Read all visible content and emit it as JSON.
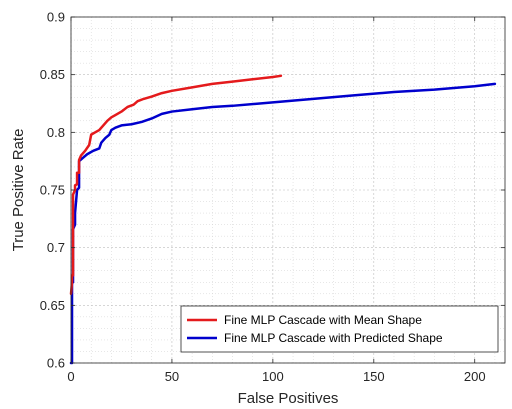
{
  "chart_data": {
    "type": "line",
    "title": "",
    "xlabel": "False Positives",
    "ylabel": "True Positive Rate",
    "xlim": [
      0,
      215
    ],
    "ylim": [
      0.6,
      0.9
    ],
    "xticks": [
      0,
      50,
      100,
      150,
      200
    ],
    "yticks": [
      0.6,
      0.65,
      0.7,
      0.75,
      0.8,
      0.85,
      0.9
    ],
    "xtick_labels": [
      "0",
      "50",
      "100",
      "150",
      "200"
    ],
    "ytick_labels": [
      "0.6",
      "0.65",
      "0.7",
      "0.75",
      "0.8",
      "0.85",
      "0.9"
    ],
    "grid": true,
    "minor_grid": true,
    "legend_position": "bottom-right",
    "series": [
      {
        "name": "Fine MLP Cascade with Mean Shape",
        "color": "#e41a1c",
        "x": [
          0,
          0.5,
          0.5,
          1,
          1,
          2,
          2,
          3,
          3,
          4,
          4,
          5,
          7,
          9,
          10,
          12,
          14,
          16,
          18,
          20,
          22,
          25,
          28,
          31,
          33,
          36,
          40,
          45,
          50,
          60,
          70,
          80,
          90,
          100,
          104
        ],
        "y": [
          0.66,
          0.67,
          0.676,
          0.676,
          0.746,
          0.75,
          0.754,
          0.755,
          0.765,
          0.765,
          0.776,
          0.78,
          0.784,
          0.789,
          0.798,
          0.8,
          0.802,
          0.806,
          0.81,
          0.813,
          0.815,
          0.818,
          0.822,
          0.824,
          0.827,
          0.829,
          0.831,
          0.834,
          0.836,
          0.839,
          0.842,
          0.844,
          0.846,
          0.848,
          0.849
        ]
      },
      {
        "name": "Fine MLP Cascade with Predicted Shape",
        "color": "#0000cd",
        "x": [
          0,
          0.5,
          0.5,
          1,
          1,
          2,
          2,
          3,
          3,
          4,
          4,
          6,
          8,
          11,
          14,
          15,
          17,
          19,
          20,
          22,
          25,
          30,
          35,
          40,
          45,
          50,
          60,
          70,
          80,
          100,
          120,
          140,
          160,
          180,
          200,
          210
        ],
        "y": [
          0.6,
          0.6,
          0.67,
          0.67,
          0.716,
          0.72,
          0.73,
          0.75,
          0.75,
          0.752,
          0.775,
          0.778,
          0.781,
          0.784,
          0.786,
          0.791,
          0.795,
          0.798,
          0.802,
          0.804,
          0.806,
          0.807,
          0.809,
          0.812,
          0.816,
          0.818,
          0.82,
          0.822,
          0.823,
          0.826,
          0.829,
          0.832,
          0.835,
          0.837,
          0.84,
          0.842
        ]
      }
    ]
  }
}
